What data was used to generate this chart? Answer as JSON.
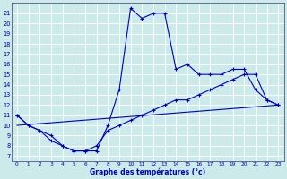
{
  "title": "Graphe des températures (°c)",
  "bg_color": "#cceaea",
  "grid_color": "#ffffff",
  "line_color": "#0000bb",
  "x_ticks": [
    0,
    1,
    2,
    3,
    4,
    5,
    6,
    7,
    8,
    9,
    10,
    11,
    12,
    13,
    14,
    15,
    16,
    17,
    18,
    19,
    20,
    21,
    22,
    23
  ],
  "y_ticks": [
    7,
    8,
    9,
    10,
    11,
    12,
    13,
    14,
    15,
    16,
    17,
    18,
    19,
    20,
    21
  ],
  "ylim": [
    6.5,
    22.0
  ],
  "xlim": [
    -0.5,
    23.5
  ],
  "series1_x": [
    0,
    1,
    2,
    3,
    4,
    5,
    6,
    7,
    8,
    9,
    10,
    11,
    12,
    13,
    14,
    15,
    16,
    17,
    18,
    19,
    20,
    21,
    22,
    23
  ],
  "series1_y": [
    11.0,
    10.0,
    9.5,
    8.5,
    8.0,
    7.5,
    7.5,
    7.5,
    10.0,
    13.5,
    21.5,
    20.5,
    21.0,
    21.0,
    15.5,
    16.0,
    15.0,
    15.0,
    15.0,
    15.5,
    15.5,
    13.5,
    12.5,
    12.0
  ],
  "series2_x": [
    0,
    1,
    2,
    3,
    4,
    5,
    6,
    7,
    8,
    9,
    10,
    11,
    12,
    13,
    14,
    15,
    16,
    17,
    18,
    19,
    20,
    21,
    22,
    23
  ],
  "series2_y": [
    11.0,
    10.0,
    9.5,
    9.0,
    8.0,
    7.5,
    7.5,
    8.0,
    9.5,
    10.0,
    10.5,
    11.0,
    11.5,
    12.0,
    12.5,
    12.5,
    13.0,
    13.5,
    14.0,
    14.5,
    15.0,
    15.0,
    12.5,
    12.0
  ],
  "series3_x": [
    0,
    23
  ],
  "series3_y": [
    10.0,
    12.0
  ]
}
